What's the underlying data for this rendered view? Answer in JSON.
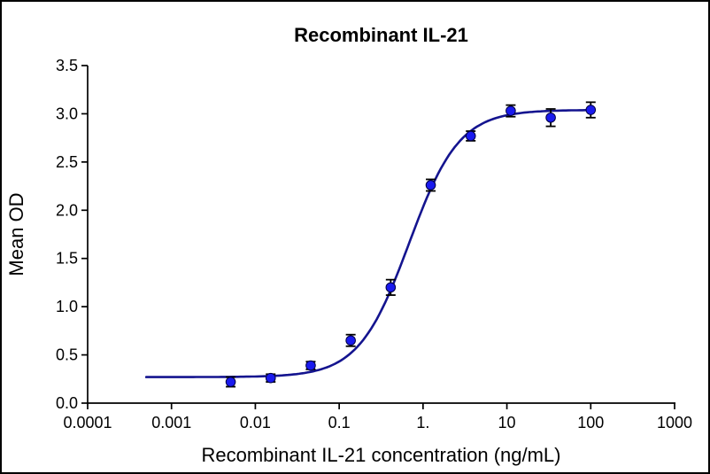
{
  "figure": {
    "background": "#ffffff",
    "border_color": "#000000"
  },
  "chart_data": {
    "type": "scatter",
    "title": "Recombinant IL-21",
    "xlabel": "Recombinant IL-21 concentration (ng/mL)",
    "ylabel": "Mean OD",
    "x_scale": "log10",
    "xlim": [
      0.0001,
      1000
    ],
    "ylim": [
      0.0,
      3.5
    ],
    "grid": false,
    "legend": null,
    "x_tick_values": [
      0.0001,
      0.001,
      0.01,
      0.1,
      1,
      10,
      100,
      1000
    ],
    "x_tick_labels": [
      "0.0001",
      "0.001",
      "0.01",
      "0.1",
      "1.",
      "10",
      "100",
      "1000"
    ],
    "y_tick_values": [
      0.0,
      0.5,
      1.0,
      1.5,
      2.0,
      2.5,
      3.0,
      3.5
    ],
    "y_tick_labels": [
      "0.0",
      "0.5",
      "1.0",
      "1.5",
      "2.0",
      "2.5",
      "3.0",
      "3.5"
    ],
    "series": [
      {
        "name": "Mean OD",
        "marker": "circle",
        "marker_color": "#1a1aee",
        "marker_edge_color": "#000040",
        "error_bar_color": "#000000",
        "x": [
          0.00508,
          0.01524,
          0.04572,
          0.1372,
          0.4115,
          1.235,
          3.704,
          11.11,
          33.33,
          100
        ],
        "y": [
          0.22,
          0.26,
          0.39,
          0.65,
          1.2,
          2.26,
          2.77,
          3.03,
          2.96,
          3.04
        ],
        "y_err": [
          0.05,
          0.04,
          0.04,
          0.06,
          0.08,
          0.06,
          0.05,
          0.06,
          0.09,
          0.08
        ]
      }
    ],
    "fit_curve": {
      "model": "4PL",
      "bottom": 0.27,
      "top": 3.04,
      "ec50": 0.68,
      "hill": 1.45,
      "x_range": [
        0.0005,
        100
      ],
      "color": "#14148f"
    },
    "axis_color": "#000000"
  }
}
